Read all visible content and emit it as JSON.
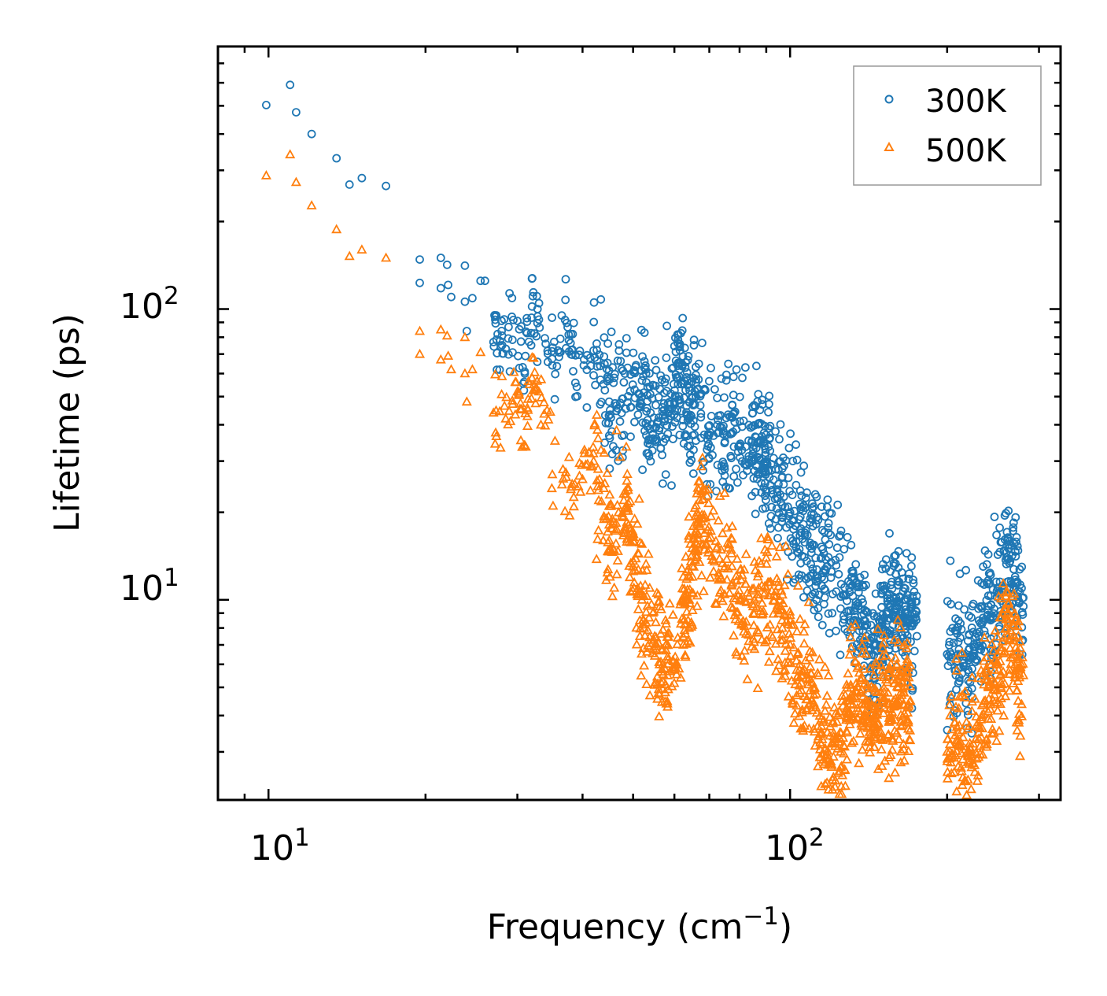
{
  "chart_data": {
    "type": "scatter",
    "xlabel": "Frequency (cm",
    "xlabel_sup": "−1",
    "xlabel_end": ")",
    "ylabel": "Lifetime (ps)",
    "xscale": "log",
    "yscale": "log",
    "xlim": [
      8,
      330
    ],
    "ylim": [
      2.05,
      800
    ],
    "x_tick_labels": [
      {
        "value": 10,
        "base": "10",
        "exp": "1"
      },
      {
        "value": 100,
        "base": "10",
        "exp": "2"
      }
    ],
    "y_tick_labels": [
      {
        "value": 10,
        "base": "10",
        "exp": "1"
      },
      {
        "value": 100,
        "base": "10",
        "exp": "2"
      }
    ],
    "legend_position": "top-right",
    "series": [
      {
        "name": "300K",
        "marker": "circle",
        "color": "#1f77b4",
        "points": [
          [
            9.9,
            503
          ],
          [
            11,
            590
          ],
          [
            11.3,
            475
          ],
          [
            12.1,
            400
          ],
          [
            13.5,
            330
          ],
          [
            14.3,
            268
          ],
          [
            15.1,
            282
          ],
          [
            16.8,
            265
          ],
          [
            19.5,
            148
          ],
          [
            19.5,
            123
          ],
          [
            21.4,
            150
          ],
          [
            21.4,
            118
          ],
          [
            22,
            142
          ],
          [
            22.1,
            121
          ],
          [
            22.4,
            110
          ],
          [
            23.8,
            141
          ],
          [
            23.8,
            106
          ],
          [
            24,
            84
          ],
          [
            24.6,
            109
          ],
          [
            25.5,
            125
          ],
          [
            26,
            125
          ],
          [
            27,
            77
          ],
          [
            27.5,
            82
          ],
          [
            28.5,
            73
          ],
          [
            30,
            91
          ],
          [
            31,
            60
          ],
          [
            32,
            102
          ],
          [
            33,
            92
          ],
          [
            35,
            64
          ],
          [
            36.5,
            95
          ],
          [
            38,
            82
          ],
          [
            39,
            54
          ],
          [
            42,
            72
          ],
          [
            45,
            48
          ],
          [
            48,
            56
          ],
          [
            52,
            50
          ],
          [
            54,
            44
          ],
          [
            57,
            43
          ],
          [
            60,
            48
          ],
          [
            61.5,
            72
          ],
          [
            64,
            42
          ],
          [
            66,
            50
          ],
          [
            70,
            37
          ],
          [
            75,
            35
          ],
          [
            80,
            34
          ],
          [
            85,
            33
          ],
          [
            88,
            35
          ],
          [
            90,
            30
          ],
          [
            95,
            25
          ],
          [
            100,
            20
          ],
          [
            105,
            17
          ],
          [
            110,
            15
          ],
          [
            115,
            14
          ],
          [
            120,
            12.5
          ],
          [
            130,
            11
          ],
          [
            135,
            9.5
          ],
          [
            140,
            7.5
          ],
          [
            145,
            6
          ],
          [
            150,
            8.5
          ],
          [
            155,
            9.5
          ],
          [
            160,
            9.8
          ],
          [
            165,
            8.5
          ],
          [
            170,
            8.5
          ],
          [
            175,
            7.5
          ],
          [
            200,
            6.5
          ],
          [
            210,
            6.5
          ],
          [
            220,
            6.2
          ],
          [
            230,
            7.5
          ],
          [
            240,
            9.5
          ],
          [
            250,
            11
          ],
          [
            260,
            14
          ],
          [
            270,
            12
          ],
          [
            280,
            9.5
          ]
        ]
      },
      {
        "name": "500K",
        "marker": "triangle",
        "color": "#ff7f0e",
        "points": [
          [
            9.9,
            288
          ],
          [
            11,
            340
          ],
          [
            11.3,
            273
          ],
          [
            12.1,
            227
          ],
          [
            13.5,
            188
          ],
          [
            14.3,
            152
          ],
          [
            15.1,
            160
          ],
          [
            16.8,
            150
          ],
          [
            19.5,
            84
          ],
          [
            19.5,
            70
          ],
          [
            21.4,
            85
          ],
          [
            21.4,
            67
          ],
          [
            22,
            81
          ],
          [
            22.1,
            69
          ],
          [
            22.4,
            62
          ],
          [
            23.8,
            80
          ],
          [
            23.8,
            60
          ],
          [
            24,
            48
          ],
          [
            24.6,
            62
          ],
          [
            25.5,
            71
          ],
          [
            27,
            44
          ],
          [
            28.5,
            42
          ],
          [
            30,
            52
          ],
          [
            31,
            34
          ],
          [
            32,
            58
          ],
          [
            33,
            52
          ],
          [
            35,
            27
          ],
          [
            38,
            24
          ],
          [
            40,
            26
          ],
          [
            42,
            30
          ],
          [
            45,
            16
          ],
          [
            48,
            22
          ],
          [
            50,
            13
          ],
          [
            52,
            10
          ],
          [
            55,
            7.5
          ],
          [
            57,
            6
          ],
          [
            60,
            5.8
          ],
          [
            63,
            10
          ],
          [
            65,
            12
          ],
          [
            67,
            22
          ],
          [
            70,
            15
          ],
          [
            75,
            13
          ],
          [
            80,
            10
          ],
          [
            85,
            9
          ],
          [
            90,
            11
          ],
          [
            95,
            9
          ],
          [
            100,
            7
          ],
          [
            105,
            5.5
          ],
          [
            110,
            4.5
          ],
          [
            115,
            3.5
          ],
          [
            120,
            3.2
          ],
          [
            125,
            3
          ],
          [
            130,
            4.5
          ],
          [
            135,
            5
          ],
          [
            140,
            4
          ],
          [
            145,
            4
          ],
          [
            150,
            4.5
          ],
          [
            155,
            4.2
          ],
          [
            160,
            4.5
          ],
          [
            165,
            4.8
          ],
          [
            170,
            4.5
          ],
          [
            200,
            3
          ],
          [
            210,
            3.2
          ],
          [
            220,
            2.9
          ],
          [
            230,
            3.5
          ],
          [
            240,
            5
          ],
          [
            250,
            6
          ],
          [
            260,
            8
          ],
          [
            270,
            6
          ],
          [
            280,
            5.5
          ]
        ]
      }
    ]
  }
}
